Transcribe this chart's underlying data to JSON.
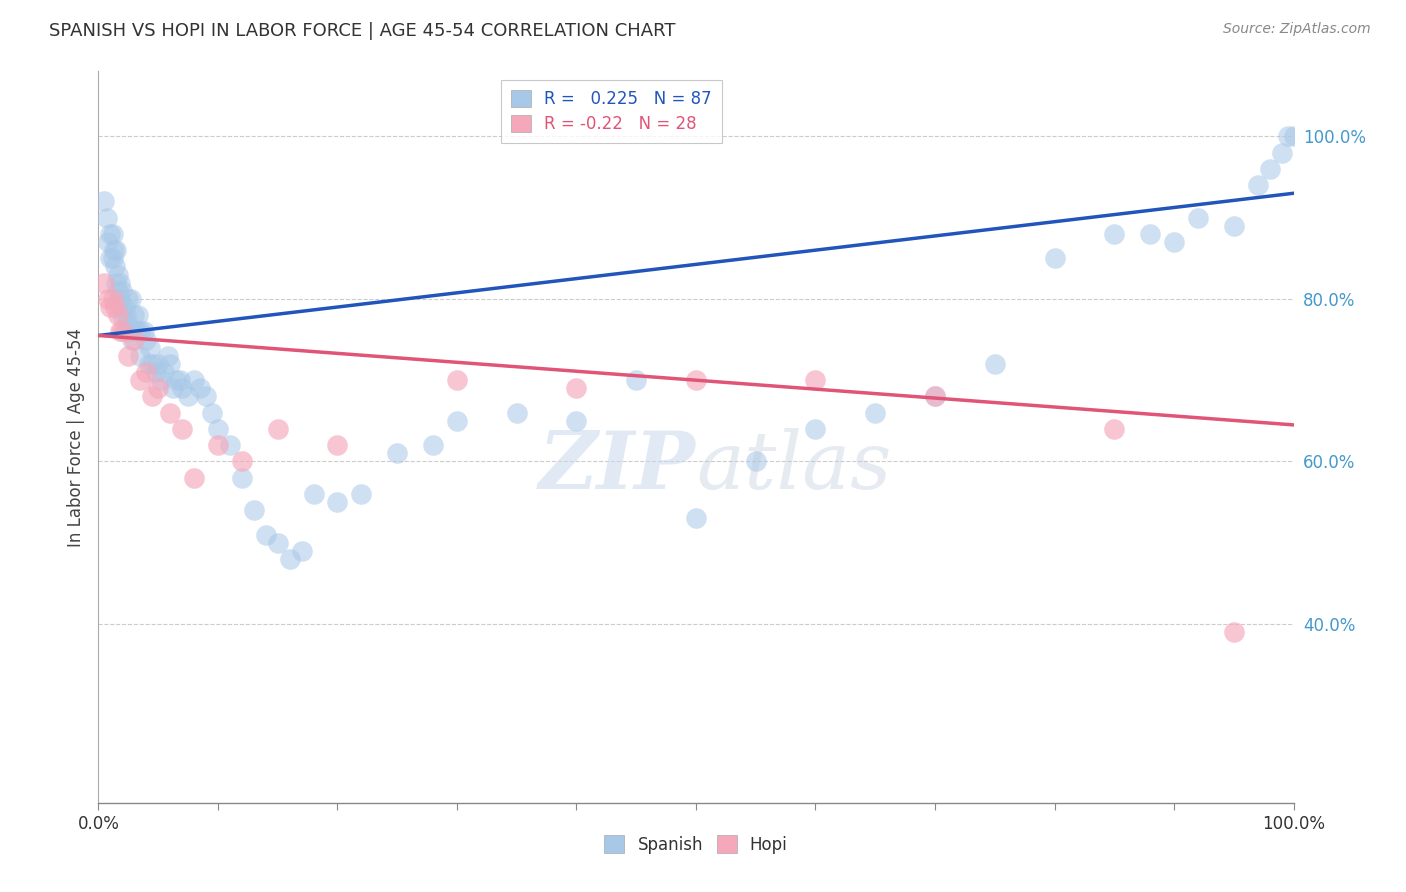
{
  "title": "SPANISH VS HOPI IN LABOR FORCE | AGE 45-54 CORRELATION CHART",
  "source_text": "Source: ZipAtlas.com",
  "ylabel": "In Labor Force | Age 45-54",
  "xlim": [
    0.0,
    1.0
  ],
  "ylim": [
    0.18,
    1.08
  ],
  "spanish_R": 0.225,
  "spanish_N": 87,
  "hopi_R": -0.22,
  "hopi_N": 28,
  "spanish_color": "#A8C8E8",
  "hopi_color": "#F4A8BA",
  "blue_line_color": "#2255BB",
  "pink_line_color": "#E05575",
  "background_color": "#FFFFFF",
  "grid_color": "#CCCCCC",
  "blue_line_y0": 0.755,
  "blue_line_y1": 0.93,
  "pink_line_y0": 0.755,
  "pink_line_y1": 0.645,
  "spanish_x": [
    0.005,
    0.007,
    0.008,
    0.01,
    0.01,
    0.012,
    0.012,
    0.013,
    0.014,
    0.015,
    0.015,
    0.016,
    0.016,
    0.017,
    0.018,
    0.018,
    0.019,
    0.02,
    0.02,
    0.022,
    0.022,
    0.023,
    0.025,
    0.025,
    0.026,
    0.027,
    0.028,
    0.03,
    0.03,
    0.032,
    0.033,
    0.035,
    0.035,
    0.038,
    0.04,
    0.042,
    0.043,
    0.045,
    0.048,
    0.05,
    0.052,
    0.055,
    0.058,
    0.06,
    0.062,
    0.065,
    0.068,
    0.07,
    0.075,
    0.08,
    0.085,
    0.09,
    0.095,
    0.1,
    0.11,
    0.12,
    0.13,
    0.14,
    0.15,
    0.16,
    0.17,
    0.18,
    0.2,
    0.22,
    0.25,
    0.28,
    0.3,
    0.35,
    0.4,
    0.45,
    0.5,
    0.55,
    0.6,
    0.65,
    0.7,
    0.75,
    0.8,
    0.85,
    0.88,
    0.9,
    0.92,
    0.95,
    0.97,
    0.98,
    0.99,
    0.995,
    1.0
  ],
  "spanish_y": [
    0.92,
    0.9,
    0.87,
    0.88,
    0.85,
    0.85,
    0.88,
    0.86,
    0.84,
    0.86,
    0.82,
    0.83,
    0.81,
    0.8,
    0.8,
    0.82,
    0.79,
    0.81,
    0.78,
    0.79,
    0.76,
    0.78,
    0.8,
    0.77,
    0.76,
    0.8,
    0.75,
    0.78,
    0.76,
    0.76,
    0.78,
    0.76,
    0.73,
    0.76,
    0.75,
    0.72,
    0.74,
    0.72,
    0.71,
    0.72,
    0.7,
    0.71,
    0.73,
    0.72,
    0.69,
    0.7,
    0.7,
    0.69,
    0.68,
    0.7,
    0.69,
    0.68,
    0.66,
    0.64,
    0.62,
    0.58,
    0.54,
    0.51,
    0.5,
    0.48,
    0.49,
    0.56,
    0.55,
    0.56,
    0.61,
    0.62,
    0.65,
    0.66,
    0.65,
    0.7,
    0.53,
    0.6,
    0.64,
    0.66,
    0.68,
    0.72,
    0.85,
    0.88,
    0.88,
    0.87,
    0.9,
    0.89,
    0.94,
    0.96,
    0.98,
    1.0,
    1.0
  ],
  "hopi_x": [
    0.005,
    0.008,
    0.01,
    0.012,
    0.014,
    0.016,
    0.018,
    0.02,
    0.025,
    0.03,
    0.035,
    0.04,
    0.045,
    0.05,
    0.06,
    0.07,
    0.08,
    0.1,
    0.12,
    0.15,
    0.2,
    0.3,
    0.4,
    0.5,
    0.6,
    0.7,
    0.85,
    0.95
  ],
  "hopi_y": [
    0.82,
    0.8,
    0.79,
    0.8,
    0.79,
    0.78,
    0.76,
    0.76,
    0.73,
    0.75,
    0.7,
    0.71,
    0.68,
    0.69,
    0.66,
    0.64,
    0.58,
    0.62,
    0.6,
    0.64,
    0.62,
    0.7,
    0.69,
    0.7,
    0.7,
    0.68,
    0.64,
    0.39
  ]
}
